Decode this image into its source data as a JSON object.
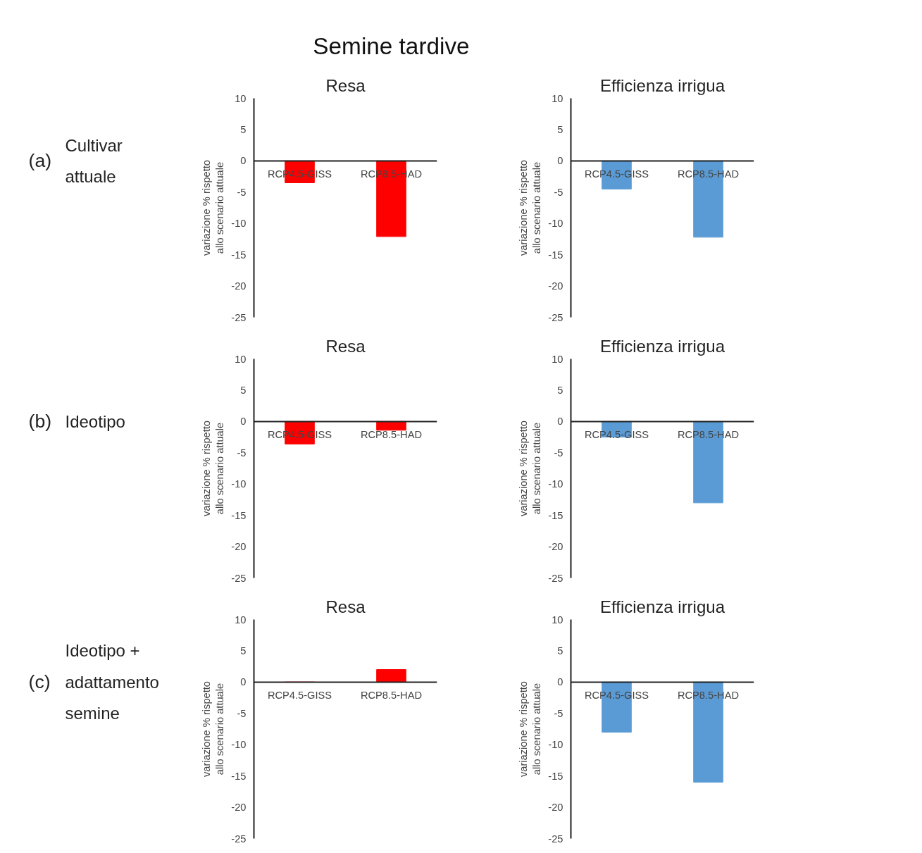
{
  "chart_data": [
    {
      "type": "bar",
      "title": "Resa",
      "subtitle": "(a) Cultivar attuale",
      "annotations": [
        "Semine tardive"
      ],
      "ylabel": "variazione % rispetto allo scenario attuale",
      "categories": [
        "RCP4.5-GISS",
        "RCP8.5-HAD"
      ],
      "values": [
        -3.5,
        -12.1
      ],
      "color": "#ff0000",
      "ylim": [
        -25,
        10
      ],
      "yticks": [
        -25,
        -20,
        -15,
        -10,
        -5,
        0,
        5,
        10
      ]
    },
    {
      "type": "bar",
      "title": "Efficienza irrigua",
      "ylabel": "variazione % rispetto allo scenario attuale",
      "categories": [
        "RCP4.5-GISS",
        "RCP8.5-HAD"
      ],
      "values": [
        -4.5,
        -12.2
      ],
      "color": "#5b9bd5",
      "ylim": [
        -25,
        10
      ],
      "yticks": [
        -25,
        -20,
        -15,
        -10,
        -5,
        0,
        5,
        10
      ]
    },
    {
      "type": "bar",
      "title": "Resa",
      "subtitle": "(b) Ideotipo",
      "ylabel": "variazione % rispetto allo scenario attuale",
      "categories": [
        "RCP4.5-GISS",
        "RCP8.5-HAD"
      ],
      "values": [
        -3.6,
        -1.4
      ],
      "color": "#ff0000",
      "ylim": [
        -25,
        10
      ],
      "yticks": [
        -25,
        -20,
        -15,
        -10,
        -5,
        0,
        5,
        10
      ]
    },
    {
      "type": "bar",
      "title": "Efficienza irrigua",
      "ylabel": "variazione % rispetto allo scenario attuale",
      "categories": [
        "RCP4.5-GISS",
        "RCP8.5-HAD"
      ],
      "values": [
        -2.5,
        -13.0
      ],
      "color": "#5b9bd5",
      "ylim": [
        -25,
        10
      ],
      "yticks": [
        -25,
        -20,
        -15,
        -10,
        -5,
        0,
        5,
        10
      ]
    },
    {
      "type": "bar",
      "title": "Resa",
      "subtitle": "(c) Ideotipo + adattamento semine",
      "ylabel": "variazione % rispetto allo scenario attuale",
      "categories": [
        "RCP4.5-GISS",
        "RCP8.5-HAD"
      ],
      "values": [
        0,
        2.0
      ],
      "color": "#ff0000",
      "ylim": [
        -25,
        10
      ],
      "yticks": [
        -25,
        -20,
        -15,
        -10,
        -5,
        0,
        5,
        10
      ]
    },
    {
      "type": "bar",
      "title": "Efficienza irrigua",
      "ylabel": "variazione % rispetto allo scenario attuale",
      "categories": [
        "RCP4.5-GISS",
        "RCP8.5-HAD"
      ],
      "values": [
        -8.0,
        -16.0
      ],
      "color": "#5b9bd5",
      "ylim": [
        -25,
        10
      ],
      "yticks": [
        -25,
        -20,
        -15,
        -10,
        -5,
        0,
        5,
        10
      ]
    }
  ]
}
